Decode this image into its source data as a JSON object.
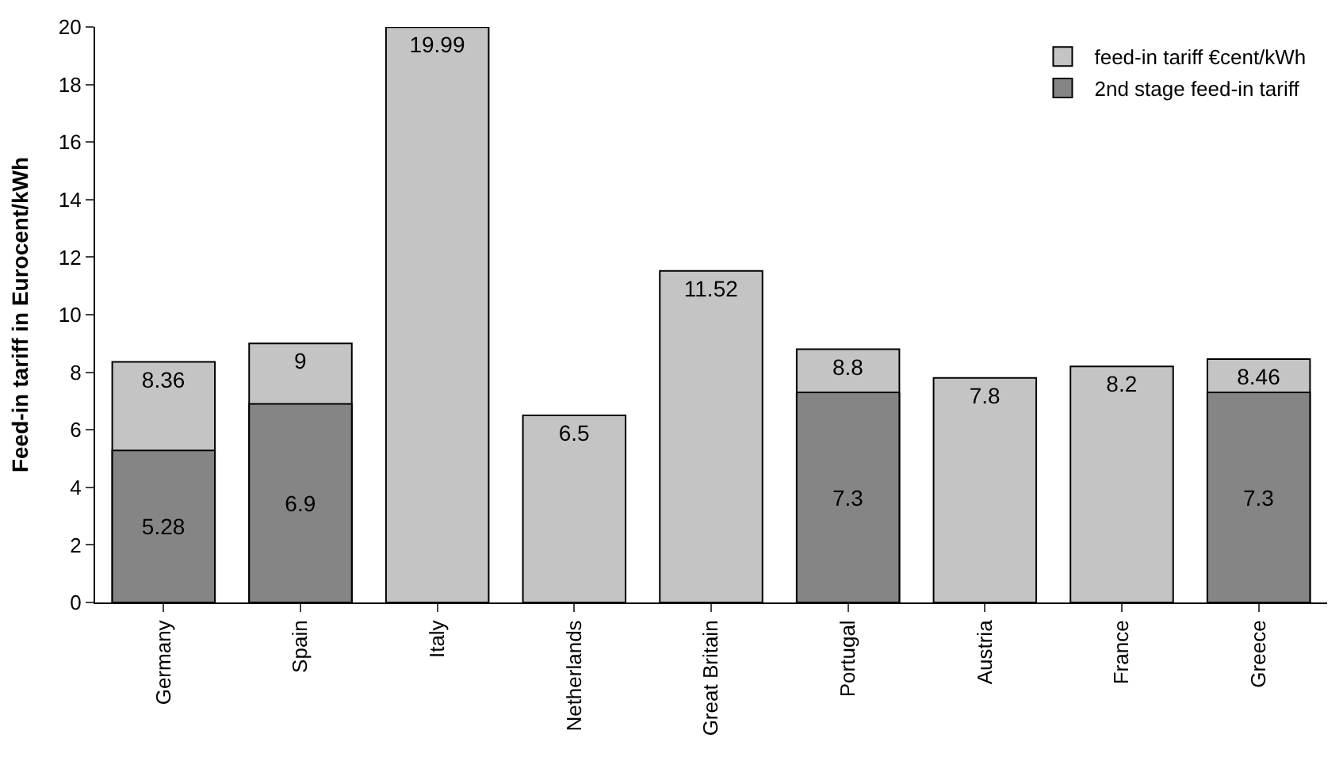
{
  "chart_data": {
    "type": "bar",
    "ylabel": "Feed-in tariff in Eurocent/kWh",
    "categories": [
      "Germany",
      "Spain",
      "Italy",
      "Netherlands",
      "Great Britain",
      "Portugal",
      "Austria",
      "France",
      "Greece"
    ],
    "series": [
      {
        "name": "feed-in tariff €cent/kWh",
        "color": "#c4c4c4",
        "values": [
          8.36,
          9,
          19.99,
          6.5,
          11.52,
          8.8,
          7.8,
          8.2,
          8.46
        ]
      },
      {
        "name": "2nd stage feed-in tariff",
        "color": "#858585",
        "values": [
          5.28,
          6.9,
          null,
          null,
          null,
          7.3,
          null,
          null,
          7.3
        ]
      }
    ],
    "data_labels": true,
    "ylim": [
      0,
      20
    ],
    "yticks": [
      0,
      2,
      4,
      6,
      8,
      10,
      12,
      14,
      16,
      18,
      20
    ],
    "legend": "top right"
  }
}
